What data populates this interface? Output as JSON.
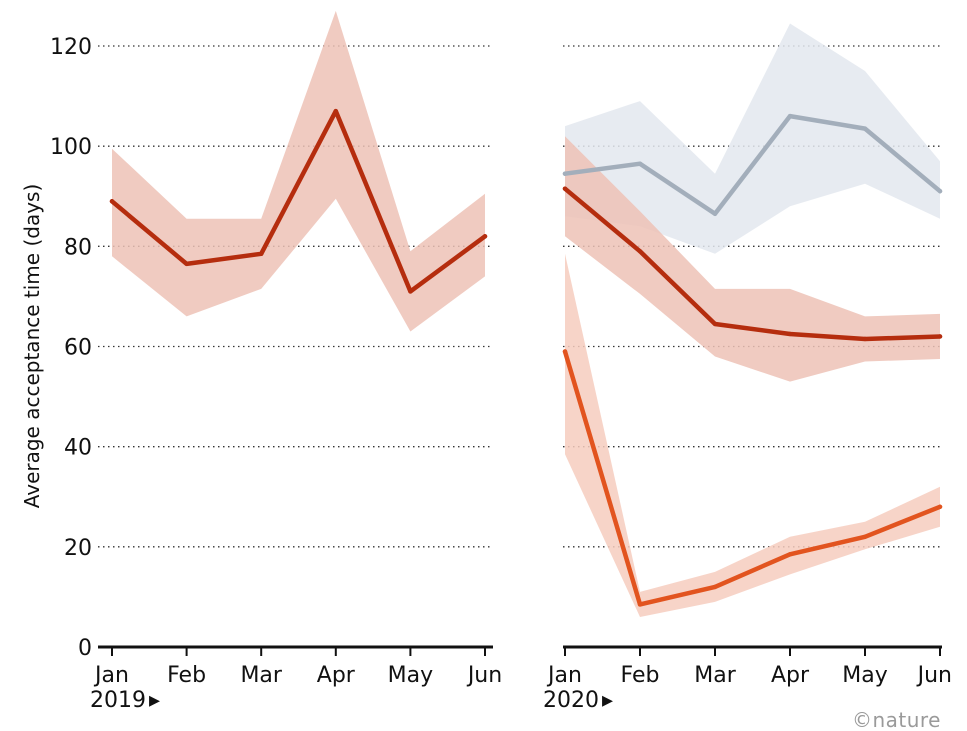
{
  "chart_data": {
    "type": "line",
    "ylabel": "Average acceptance time (days)",
    "ylim": [
      0,
      120
    ],
    "yticks": [
      0,
      20,
      40,
      60,
      80,
      100,
      120
    ],
    "grid": true,
    "credit": "©nature",
    "colors": {
      "dark_red": "#b52d0e",
      "dark_red_band": "#edc2b6",
      "orange": "#e2541f",
      "orange_band": "#f6cdbe",
      "grey": "#a3aebb",
      "grey_band": "#e3e8ee"
    },
    "panels": [
      {
        "name": "2019",
        "year_label": "2019",
        "year_marker": "▸",
        "categories": [
          "Jan",
          "Feb",
          "Mar",
          "Apr",
          "May",
          "Jun"
        ],
        "series": [
          {
            "color_key": "dark_red",
            "band_key": "dark_red_band",
            "values": [
              89,
              76.5,
              78.5,
              107,
              71,
              82
            ],
            "lower": [
              78,
              66,
              71.5,
              89.5,
              63,
              74
            ],
            "upper": [
              99.5,
              85.5,
              85.5,
              127,
              79,
              90.5
            ]
          }
        ]
      },
      {
        "name": "2020",
        "year_label": "2020",
        "year_marker": "▸",
        "categories": [
          "Jan",
          "Feb",
          "Mar",
          "Apr",
          "May",
          "Jun"
        ],
        "series": [
          {
            "color_key": "grey",
            "band_key": "grey_band",
            "values": [
              94.5,
              96.5,
              86.5,
              106,
              103.5,
              91
            ],
            "lower": [
              86,
              84,
              78.5,
              88,
              92.5,
              85.5
            ],
            "upper": [
              104,
              109,
              94.5,
              124.5,
              115,
              97
            ]
          },
          {
            "color_key": "dark_red",
            "band_key": "dark_red_band",
            "values": [
              91.5,
              79,
              64.5,
              62.5,
              61.5,
              62
            ],
            "lower": [
              82,
              70.5,
              58,
              53,
              57,
              57.5
            ],
            "upper": [
              102,
              87,
              71.5,
              71.5,
              66,
              66.5
            ]
          },
          {
            "color_key": "orange",
            "band_key": "orange_band",
            "values": [
              59,
              8.5,
              12,
              18.5,
              22,
              28
            ],
            "lower": [
              38.5,
              6,
              9,
              14.5,
              19.5,
              24
            ],
            "upper": [
              78.5,
              11,
              15,
              22,
              25,
              32
            ]
          }
        ]
      }
    ]
  }
}
